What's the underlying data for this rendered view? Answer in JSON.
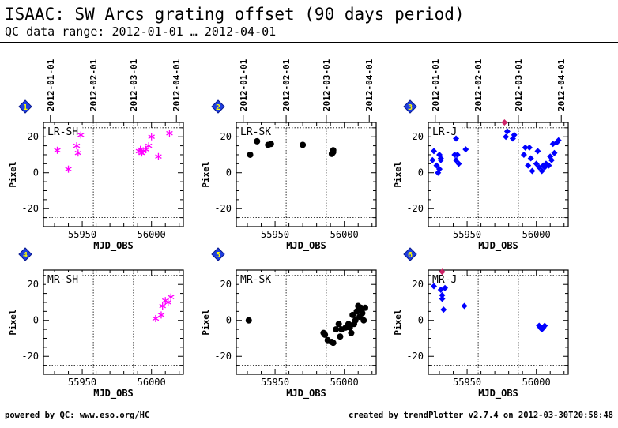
{
  "header": {
    "title": "ISAAC: SW Arcs grating offset (90 days period)",
    "subtitle": "QC data range: 2012-01-01 … 2012-04-01"
  },
  "footer": {
    "left": "powered by QC: www.eso.org/HC",
    "right": "created by trendPlotter v2.7.4 on 2012-03-30T20:58:48"
  },
  "chart_data": [
    {
      "type": "scatter",
      "panel_number": "1",
      "label": "LR-SH",
      "xlabel": "MJD_OBS",
      "ylabel": "Pixel",
      "xlim": [
        55922,
        56023
      ],
      "ylim": [
        -30,
        28
      ],
      "x_ticks": [
        55950,
        56000
      ],
      "y_ticks": [
        -20,
        0,
        20
      ],
      "date_ticks": [
        {
          "label": "2012-01-01",
          "mjd": 55927
        },
        {
          "label": "2012-02-01",
          "mjd": 55958
        },
        {
          "label": "2012-03-01",
          "mjd": 55987
        },
        {
          "label": "2012-04-01",
          "mjd": 56018
        }
      ],
      "ref_lines": [
        -25,
        25
      ],
      "grid": false,
      "marker": "asterisk",
      "color": "#ff00ff",
      "points": [
        [
          55932,
          12.5
        ],
        [
          55940,
          2
        ],
        [
          55946,
          15
        ],
        [
          55947,
          11
        ],
        [
          55949,
          21
        ],
        [
          55991,
          12
        ],
        [
          55992,
          13
        ],
        [
          55993,
          11
        ],
        [
          55994,
          12
        ],
        [
          55996,
          13
        ],
        [
          55998,
          15
        ],
        [
          56000,
          20
        ],
        [
          56005,
          9
        ],
        [
          56013,
          22
        ]
      ]
    },
    {
      "type": "scatter",
      "panel_number": "2",
      "label": "LR-SK",
      "xlabel": "MJD_OBS",
      "ylabel": "Pixel",
      "xlim": [
        55922,
        56023
      ],
      "ylim": [
        -30,
        28
      ],
      "x_ticks": [
        55950,
        56000
      ],
      "y_ticks": [
        -20,
        0,
        20
      ],
      "date_ticks": [
        {
          "label": "2012-01-01",
          "mjd": 55927
        },
        {
          "label": "2012-02-01",
          "mjd": 55958
        },
        {
          "label": "2012-03-01",
          "mjd": 55987
        },
        {
          "label": "2012-04-01",
          "mjd": 56018
        }
      ],
      "ref_lines": [
        -25,
        25
      ],
      "grid": false,
      "marker": "filled-circle",
      "color": "#000000",
      "points": [
        [
          55932,
          10
        ],
        [
          55937,
          17.5
        ],
        [
          55945,
          15.5
        ],
        [
          55947,
          16
        ],
        [
          55970,
          15.5
        ],
        [
          55991,
          10.5
        ],
        [
          55992,
          12.5
        ],
        [
          55992,
          11.5
        ]
      ]
    },
    {
      "type": "scatter",
      "panel_number": "3",
      "label": "LR-J",
      "xlabel": "MJD_OBS",
      "ylabel": "Pixel",
      "xlim": [
        55922,
        56023
      ],
      "ylim": [
        -30,
        28
      ],
      "x_ticks": [
        55950,
        56000
      ],
      "y_ticks": [
        -20,
        0,
        20
      ],
      "date_ticks": [
        {
          "label": "2012-01-01",
          "mjd": 55927
        },
        {
          "label": "2012-02-01",
          "mjd": 55958
        },
        {
          "label": "2012-03-01",
          "mjd": 55987
        },
        {
          "label": "2012-04-01",
          "mjd": 56018
        }
      ],
      "ref_lines": [
        -25,
        25
      ],
      "grid": false,
      "marker": "filled-diamond",
      "color": "#0000ff",
      "points": [
        [
          55925,
          7
        ],
        [
          55926,
          12
        ],
        [
          55928,
          4
        ],
        [
          55929,
          0
        ],
        [
          55930,
          2
        ],
        [
          55930,
          10
        ],
        [
          55931,
          7
        ],
        [
          55931,
          8
        ],
        [
          55941,
          10
        ],
        [
          55942,
          7
        ],
        [
          55942,
          19
        ],
        [
          55943,
          10
        ],
        [
          55944,
          5
        ],
        [
          55949,
          13
        ],
        [
          55978,
          20
        ],
        [
          55979,
          23
        ],
        [
          55983,
          19
        ],
        [
          55984,
          21
        ],
        [
          55991,
          10
        ],
        [
          55992,
          14
        ],
        [
          55994,
          4
        ],
        [
          55995,
          14
        ],
        [
          55996,
          8
        ],
        [
          55997,
          1
        ],
        [
          56000,
          5
        ],
        [
          56001,
          12
        ],
        [
          56002,
          3
        ],
        [
          56004,
          1
        ],
        [
          56005,
          4
        ],
        [
          56006,
          3
        ],
        [
          56007,
          5
        ],
        [
          56009,
          4
        ],
        [
          56010,
          9
        ],
        [
          56011,
          7
        ],
        [
          56012,
          16
        ],
        [
          56013,
          11
        ],
        [
          56015,
          17
        ],
        [
          56016,
          18
        ]
      ],
      "highlight_points": [
        [
          55977,
          28
        ]
      ],
      "highlight_color": "#cc2266"
    },
    {
      "type": "scatter",
      "panel_number": "4",
      "label": "MR-SH",
      "xlabel": "MJD_OBS",
      "ylabel": "Pixel",
      "xlim": [
        55922,
        56023
      ],
      "ylim": [
        -30,
        28
      ],
      "x_ticks": [
        55950,
        56000
      ],
      "y_ticks": [
        -20,
        0,
        20
      ],
      "ref_lines": [
        -25,
        25
      ],
      "grid": false,
      "marker": "asterisk",
      "color": "#ff00ff",
      "points": [
        [
          56003,
          1
        ],
        [
          56007,
          3
        ],
        [
          56008,
          8
        ],
        [
          56010,
          11
        ],
        [
          56012,
          10
        ],
        [
          56014,
          13
        ]
      ]
    },
    {
      "type": "scatter",
      "panel_number": "5",
      "label": "MR-SK",
      "xlabel": "MJD_OBS",
      "ylabel": "Pixel",
      "xlim": [
        55922,
        56023
      ],
      "ylim": [
        -30,
        28
      ],
      "x_ticks": [
        55950,
        56000
      ],
      "y_ticks": [
        -20,
        0,
        20
      ],
      "ref_lines": [
        -25,
        25
      ],
      "grid": false,
      "marker": "filled-circle",
      "color": "#000000",
      "points": [
        [
          55931,
          0
        ],
        [
          55985,
          -7
        ],
        [
          55986,
          -8
        ],
        [
          55988,
          -11
        ],
        [
          55991,
          -12
        ],
        [
          55992,
          -12.5
        ],
        [
          55994,
          -5
        ],
        [
          55996,
          -2
        ],
        [
          55997,
          -9
        ],
        [
          55998,
          -5
        ],
        [
          56001,
          -4
        ],
        [
          56003,
          -2
        ],
        [
          56004,
          -4
        ],
        [
          56005,
          -7
        ],
        [
          56006,
          3
        ],
        [
          56007,
          -2
        ],
        [
          56008,
          0
        ],
        [
          56009,
          5
        ],
        [
          56010,
          8
        ],
        [
          56011,
          2
        ],
        [
          56012,
          7
        ],
        [
          56013,
          4
        ],
        [
          56014,
          0
        ],
        [
          56015,
          7
        ]
      ]
    },
    {
      "type": "scatter",
      "panel_number": "6",
      "label": "MR-J",
      "xlabel": "MJD_OBS",
      "ylabel": "Pixel",
      "xlim": [
        55922,
        56023
      ],
      "ylim": [
        -30,
        28
      ],
      "x_ticks": [
        55950,
        56000
      ],
      "y_ticks": [
        -20,
        0,
        20
      ],
      "ref_lines": [
        -25,
        25
      ],
      "grid": false,
      "marker": "filled-diamond",
      "color": "#0000ff",
      "points": [
        [
          55926,
          19
        ],
        [
          55931,
          17
        ],
        [
          55932,
          14
        ],
        [
          55932,
          12
        ],
        [
          55933,
          6
        ],
        [
          55934,
          18
        ],
        [
          55948,
          8
        ],
        [
          56002,
          -3
        ],
        [
          56003,
          -4
        ],
        [
          56004,
          -5
        ],
        [
          56005,
          -4
        ],
        [
          56006,
          -3
        ]
      ],
      "highlight_points": [
        [
          55932,
          27
        ]
      ],
      "highlight_color": "#cc2266"
    }
  ]
}
